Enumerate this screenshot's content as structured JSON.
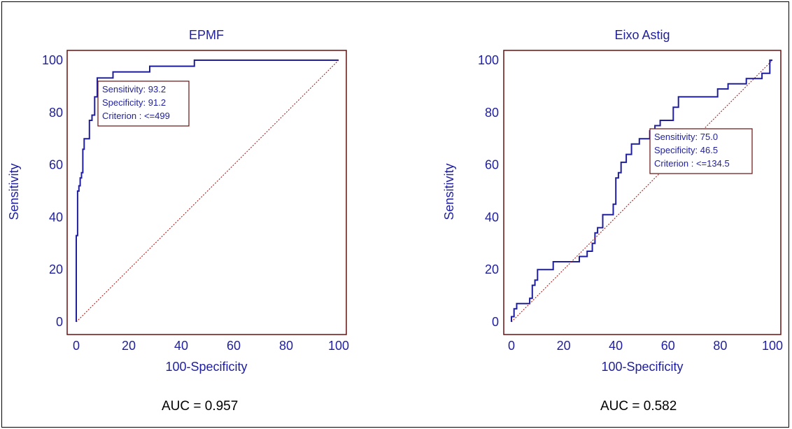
{
  "colors": {
    "roc_line": "#1f1f9e",
    "diagonal": "#a01010",
    "plot_border": "#6a0f0f",
    "axis_text": "#1f1f9e",
    "box_text": "#1f1f9e",
    "box_border": "#6a0f0f"
  },
  "chart_data": [
    {
      "type": "line",
      "title": "EPMF",
      "xlabel": "100-Specificity",
      "ylabel": "Sensitivity",
      "xlim": [
        0,
        100
      ],
      "ylim": [
        0,
        100
      ],
      "x_ticks": [
        "0",
        "20",
        "40",
        "60",
        "80",
        "100"
      ],
      "y_ticks": [
        "0",
        "20",
        "40",
        "60",
        "80",
        "100"
      ],
      "series": [
        {
          "x": [
            0,
            0,
            0.5,
            0.5,
            1,
            1,
            1.5,
            1.5,
            2,
            2,
            2.5,
            2.5,
            3,
            3,
            4,
            4,
            5,
            5,
            6,
            6,
            7,
            7,
            8,
            8,
            10,
            10,
            14,
            14,
            28,
            28,
            45,
            45,
            100
          ],
          "y": [
            0,
            33,
            33,
            50,
            50,
            52,
            52,
            55,
            55,
            57,
            57,
            66,
            66,
            70,
            70,
            70,
            70,
            77,
            77,
            79,
            79,
            86,
            86,
            93.2,
            93.2,
            93.2,
            93.2,
            95.5,
            95.5,
            97.7,
            97.7,
            100,
            100
          ]
        },
        {
          "x": [
            0,
            100
          ],
          "y": [
            0,
            100
          ]
        }
      ],
      "annotation": {
        "sensitivity": "Sensitivity: 93.2",
        "specificity": "Specificity: 91.2",
        "criterion": "Criterion : <=499"
      },
      "auc": "AUC = 0.957"
    },
    {
      "type": "line",
      "title": "Eixo Astig",
      "xlabel": "100-Specificity",
      "ylabel": "Sensitivity",
      "xlim": [
        0,
        100
      ],
      "ylim": [
        0,
        100
      ],
      "x_ticks": [
        "0",
        "20",
        "40",
        "60",
        "80",
        "100"
      ],
      "y_ticks": [
        "0",
        "20",
        "40",
        "60",
        "80",
        "100"
      ],
      "series": [
        {
          "x": [
            0,
            0,
            1,
            1,
            2,
            2,
            3,
            3,
            7,
            7,
            8,
            8,
            9,
            9,
            10,
            10,
            11,
            11,
            16,
            16,
            26,
            26,
            29,
            29,
            31,
            31,
            32,
            32,
            33,
            33,
            35,
            35,
            39,
            39,
            40,
            40,
            41,
            41,
            42,
            42,
            44,
            44,
            46,
            46,
            47,
            47,
            49,
            49,
            53,
            53,
            55,
            55,
            57,
            57,
            59,
            59,
            62,
            62,
            64,
            64,
            76,
            76,
            79,
            79,
            83,
            83,
            86,
            86,
            90,
            90,
            96,
            96,
            99,
            99,
            100
          ],
          "y": [
            0,
            2,
            2,
            5,
            5,
            7,
            7,
            7,
            7,
            9,
            9,
            14,
            14,
            16,
            16,
            20,
            20,
            20,
            20,
            23,
            23,
            25,
            25,
            27,
            27,
            30,
            30,
            34,
            34,
            36,
            36,
            41,
            41,
            45,
            45,
            55,
            55,
            57,
            57,
            61,
            61,
            64,
            64,
            68,
            68,
            68,
            68,
            70,
            70,
            73,
            73,
            75,
            75,
            77,
            77,
            77,
            77,
            82,
            82,
            86,
            86,
            86,
            86,
            89,
            89,
            91,
            91,
            91,
            91,
            93,
            93,
            95,
            95,
            100,
            100
          ]
        },
        {
          "x": [
            0,
            100
          ],
          "y": [
            0,
            100
          ]
        }
      ],
      "annotation": {
        "sensitivity": "Sensitivity: 75.0",
        "specificity": "Specificity: 46.5",
        "criterion": "Criterion : <=134.5"
      },
      "auc": "AUC = 0.582"
    }
  ]
}
